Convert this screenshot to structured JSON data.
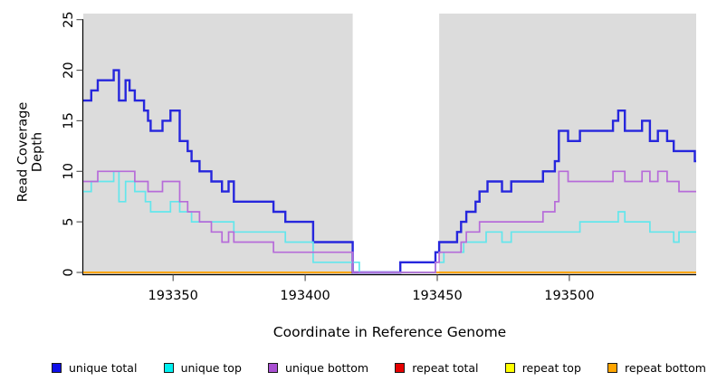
{
  "figure": {
    "background": "#ffffff",
    "plot_background": "#dcdcdc",
    "axis_color": "#000000",
    "tick_color": "#4d4d4d"
  },
  "chart_data": {
    "type": "line",
    "subtype": "step",
    "title": "",
    "xlabel": "Coordinate in Reference Genome",
    "ylabel": "Read Coverage Depth",
    "xlim": [
      193316,
      193548
    ],
    "ylim": [
      0,
      25
    ],
    "x_ticks": [
      "193350",
      "193400",
      "193450",
      "193500"
    ],
    "x_tick_values": [
      193350,
      193400,
      193450,
      193500
    ],
    "y_ticks": [
      "0",
      "5",
      "10",
      "15",
      "20",
      "25"
    ],
    "y_tick_values": [
      0,
      5,
      10,
      15,
      20,
      25
    ],
    "grid": false,
    "legend_position": "bottom",
    "shaded_regions": [
      [
        193316,
        193418
      ],
      [
        193450.7,
        193548
      ]
    ],
    "shade_color": "#dcdcdc",
    "series": [
      {
        "name": "repeat total",
        "color": "#e60000",
        "width": 1.7,
        "points": [
          [
            193316,
            0
          ]
        ]
      },
      {
        "name": "repeat top",
        "color": "#ffff00",
        "width": 1.7,
        "points": [
          [
            193316,
            0
          ]
        ]
      },
      {
        "name": "repeat bottom",
        "color": "#ffa500",
        "width": 2,
        "points": [
          [
            193316,
            0
          ]
        ]
      },
      {
        "name": "unique total",
        "color": "#2626dd",
        "width": 2.4,
        "points": [
          [
            193316,
            17
          ],
          [
            193319,
            18
          ],
          [
            193321.5,
            19
          ],
          [
            193327.5,
            20
          ],
          [
            193329.5,
            17
          ],
          [
            193332,
            19
          ],
          [
            193333.5,
            18
          ],
          [
            193335.5,
            17
          ],
          [
            193339,
            16
          ],
          [
            193340.5,
            15
          ],
          [
            193341.5,
            14
          ],
          [
            193346,
            15
          ],
          [
            193349,
            16
          ],
          [
            193352.5,
            13
          ],
          [
            193355.5,
            12
          ],
          [
            193357,
            11
          ],
          [
            193360,
            10
          ],
          [
            193364.5,
            9
          ],
          [
            193368.5,
            8
          ],
          [
            193371,
            9
          ],
          [
            193373,
            7
          ],
          [
            193388,
            6
          ],
          [
            193392.5,
            5
          ],
          [
            193403,
            3
          ],
          [
            193418,
            0
          ],
          [
            193436,
            1
          ],
          [
            193449.3,
            2
          ],
          [
            193450.7,
            3
          ],
          [
            193457.5,
            4
          ],
          [
            193459,
            5
          ],
          [
            193461,
            6
          ],
          [
            193464.5,
            7
          ],
          [
            193466,
            8
          ],
          [
            193469,
            9
          ],
          [
            193474.5,
            8
          ],
          [
            193478,
            9
          ],
          [
            193490,
            10
          ],
          [
            193494.5,
            11
          ],
          [
            193496,
            14
          ],
          [
            193499.5,
            13
          ],
          [
            193504,
            14
          ],
          [
            193516.5,
            15
          ],
          [
            193518.5,
            16
          ],
          [
            193521,
            14
          ],
          [
            193527.5,
            15
          ],
          [
            193530.5,
            13
          ],
          [
            193533.5,
            14
          ],
          [
            193537,
            13
          ],
          [
            193539.5,
            12
          ],
          [
            193547.5,
            11
          ]
        ]
      },
      {
        "name": "unique top",
        "color": "#63e6ec",
        "width": 1.7,
        "points": [
          [
            193316,
            8
          ],
          [
            193319,
            9
          ],
          [
            193327.5,
            10
          ],
          [
            193329.5,
            7
          ],
          [
            193332,
            9
          ],
          [
            193335.5,
            8
          ],
          [
            193339.5,
            7
          ],
          [
            193341.5,
            6
          ],
          [
            193349,
            7
          ],
          [
            193352.5,
            6
          ],
          [
            193357,
            5
          ],
          [
            193373,
            4
          ],
          [
            193392.5,
            3
          ],
          [
            193403,
            1
          ],
          [
            193420.5,
            0
          ],
          [
            193449.3,
            1
          ],
          [
            193452.5,
            2
          ],
          [
            193460,
            3
          ],
          [
            193468.5,
            4
          ],
          [
            193474.5,
            3
          ],
          [
            193478,
            4
          ],
          [
            193504,
            5
          ],
          [
            193518.5,
            6
          ],
          [
            193521,
            5
          ],
          [
            193530.5,
            4
          ],
          [
            193539.5,
            3
          ],
          [
            193541.5,
            4
          ]
        ]
      },
      {
        "name": "unique bottom",
        "color": "#b66bd9",
        "width": 1.7,
        "points": [
          [
            193316,
            9
          ],
          [
            193321.5,
            10
          ],
          [
            193335.5,
            9
          ],
          [
            193340.5,
            8
          ],
          [
            193346,
            9
          ],
          [
            193352.5,
            7
          ],
          [
            193355.5,
            6
          ],
          [
            193360,
            5
          ],
          [
            193364.5,
            4
          ],
          [
            193368.5,
            3
          ],
          [
            193371,
            4
          ],
          [
            193373,
            3
          ],
          [
            193388,
            2
          ],
          [
            193418,
            0
          ],
          [
            193449.3,
            1
          ],
          [
            193450.7,
            2
          ],
          [
            193459,
            3
          ],
          [
            193461,
            4
          ],
          [
            193466,
            5
          ],
          [
            193490,
            6
          ],
          [
            193494.5,
            7
          ],
          [
            193496,
            10
          ],
          [
            193499.5,
            9
          ],
          [
            193516.5,
            10
          ],
          [
            193521,
            9
          ],
          [
            193527.5,
            10
          ],
          [
            193530.5,
            9
          ],
          [
            193533.5,
            10
          ],
          [
            193537,
            9
          ],
          [
            193541.5,
            8
          ]
        ]
      }
    ]
  },
  "legend": {
    "items": [
      {
        "label": "unique total",
        "color": "#0f0fe8"
      },
      {
        "label": "unique top",
        "color": "#00f0f0"
      },
      {
        "label": "unique bottom",
        "color": "#a94fd2"
      },
      {
        "label": "repeat total",
        "color": "#e60000"
      },
      {
        "label": "repeat top",
        "color": "#ffff00"
      },
      {
        "label": "repeat bottom",
        "color": "#ffa500"
      }
    ]
  }
}
